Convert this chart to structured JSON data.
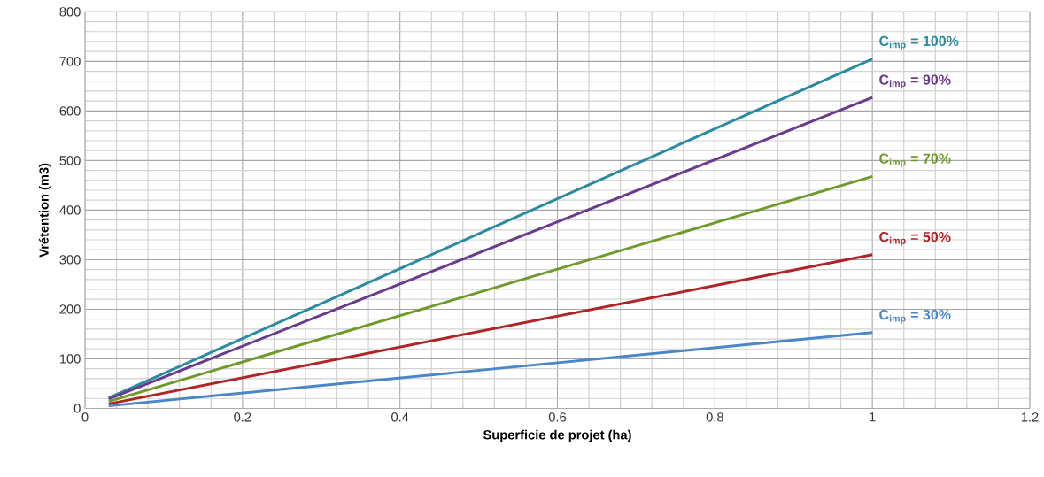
{
  "chart_data": {
    "type": "line",
    "xlabel": "Superficie de projet (ha)",
    "ylabel": "Vrétention (m3)",
    "x": [
      0.03,
      1
    ],
    "series": [
      {
        "name": "C$_{imp}$ = 100%",
        "color": "#2a8aa0",
        "values": [
          21,
          705
        ]
      },
      {
        "name": "C$_{imp}$ = 90%",
        "color": "#6a3a8c",
        "values": [
          19,
          627
        ]
      },
      {
        "name": "C$_{imp}$ = 70%",
        "color": "#6f9a2a",
        "values": [
          14,
          468
        ]
      },
      {
        "name": "C$_{imp}$ = 50%",
        "color": "#b02428",
        "values": [
          9,
          310
        ]
      },
      {
        "name": "C$_{imp}$ = 30%",
        "color": "#4a86c8",
        "values": [
          5,
          153
        ]
      }
    ],
    "xlim": [
      0,
      1.2
    ],
    "ylim": [
      0,
      800
    ],
    "xticks": [
      0,
      0.2,
      0.4,
      0.6,
      0.8,
      1,
      1.2
    ],
    "yticks": [
      0,
      100,
      200,
      300,
      400,
      500,
      600,
      700,
      800
    ],
    "grid": true,
    "marker": "none",
    "line_style": "solid"
  }
}
